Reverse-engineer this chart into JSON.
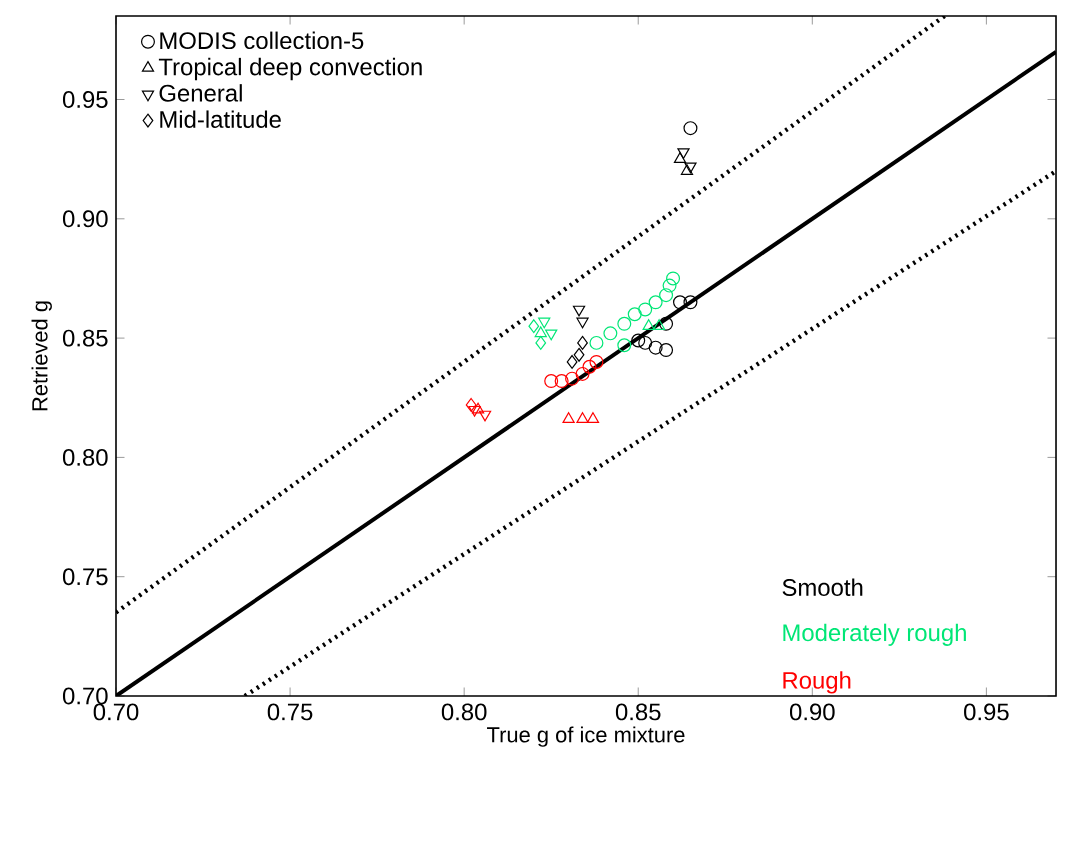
{
  "chart_data": {
    "type": "scatter",
    "xlabel": "True g of ice mixture",
    "ylabel": "Retrieved g",
    "xlim": [
      0.7,
      0.97
    ],
    "ylim": [
      0.7,
      0.985
    ],
    "xticks": [
      {
        "value": 0.7,
        "label": "0.70"
      },
      {
        "value": 0.75,
        "label": "0.75"
      },
      {
        "value": 0.8,
        "label": "0.80"
      },
      {
        "value": 0.85,
        "label": "0.85"
      },
      {
        "value": 0.9,
        "label": "0.90"
      },
      {
        "value": 0.95,
        "label": "0.95"
      }
    ],
    "yticks": [
      {
        "value": 0.7,
        "label": "0.70"
      },
      {
        "value": 0.75,
        "label": "0.75"
      },
      {
        "value": 0.8,
        "label": "0.80"
      },
      {
        "value": 0.85,
        "label": "0.85"
      },
      {
        "value": 0.9,
        "label": "0.90"
      },
      {
        "value": 0.95,
        "label": "0.95"
      }
    ],
    "legend": "top left",
    "grid": false,
    "annotations": [
      "Smooth",
      "Moderately rough",
      "Rough"
    ],
    "series": [
      {
        "name": "MODIS collection-5",
        "color": "#000000",
        "marker": "circle",
        "x": [
          0.865,
          0.862,
          0.865,
          0.858,
          0.852,
          0.855,
          0.858,
          0.85
        ],
        "values": [
          0.938,
          0.865,
          0.865,
          0.856,
          0.848,
          0.846,
          0.845,
          0.849
        ]
      },
      {
        "name": "Tropical deep convection",
        "color": "#000000",
        "marker": "triangle",
        "x": [
          0.862,
          0.864
        ],
        "values": [
          0.925,
          0.92
        ]
      },
      {
        "name": "General",
        "color": "#000000",
        "marker": "triangle-down",
        "x": [
          0.863,
          0.865,
          0.833,
          0.834
        ],
        "values": [
          0.928,
          0.922,
          0.862,
          0.857
        ]
      },
      {
        "name": "Mid-latitude",
        "color": "#000000",
        "marker": "diamond",
        "x": [
          0.834,
          0.831,
          0.833
        ],
        "values": [
          0.848,
          0.84,
          0.843
        ]
      },
      {
        "color": "#00e676",
        "marker": "circle",
        "x": [
          0.838,
          0.842,
          0.846,
          0.849,
          0.852,
          0.855,
          0.858,
          0.859,
          0.86,
          0.846
        ],
        "values": [
          0.848,
          0.852,
          0.856,
          0.86,
          0.862,
          0.865,
          0.868,
          0.872,
          0.875,
          0.847
        ]
      },
      {
        "color": "#00e676",
        "marker": "triangle",
        "x": [
          0.822,
          0.853,
          0.856
        ],
        "values": [
          0.852,
          0.855,
          0.855
        ]
      },
      {
        "color": "#00e676",
        "marker": "triangle-down",
        "x": [
          0.823,
          0.825
        ],
        "values": [
          0.857,
          0.852
        ]
      },
      {
        "color": "#00e676",
        "marker": "diamond",
        "x": [
          0.82,
          0.822
        ],
        "values": [
          0.855,
          0.848
        ]
      },
      {
        "color": "#ff0000",
        "marker": "circle",
        "x": [
          0.825,
          0.828,
          0.831,
          0.834,
          0.836,
          0.838
        ],
        "values": [
          0.832,
          0.832,
          0.833,
          0.835,
          0.838,
          0.84
        ]
      },
      {
        "color": "#ff0000",
        "marker": "triangle",
        "x": [
          0.83,
          0.834,
          0.837,
          0.804
        ],
        "values": [
          0.816,
          0.816,
          0.816,
          0.82
        ]
      },
      {
        "color": "#ff0000",
        "marker": "triangle-down",
        "x": [
          0.803,
          0.806
        ],
        "values": [
          0.82,
          0.818
        ]
      },
      {
        "color": "#ff0000",
        "marker": "diamond",
        "x": [
          0.802
        ],
        "values": [
          0.822
        ]
      },
      {
        "type": "line",
        "color": "#000000",
        "line_style": "solid",
        "x": [
          0.7,
          0.97
        ],
        "values": [
          0.7,
          0.97
        ]
      },
      {
        "type": "line",
        "color": "#000000",
        "line_style": "dotted",
        "x": [
          0.7,
          0.938
        ],
        "values": [
          0.735,
          0.985
        ]
      },
      {
        "type": "line",
        "color": "#000000",
        "line_style": "dotted",
        "x": [
          0.737,
          0.97
        ],
        "values": [
          0.7,
          0.92
        ]
      }
    ]
  }
}
